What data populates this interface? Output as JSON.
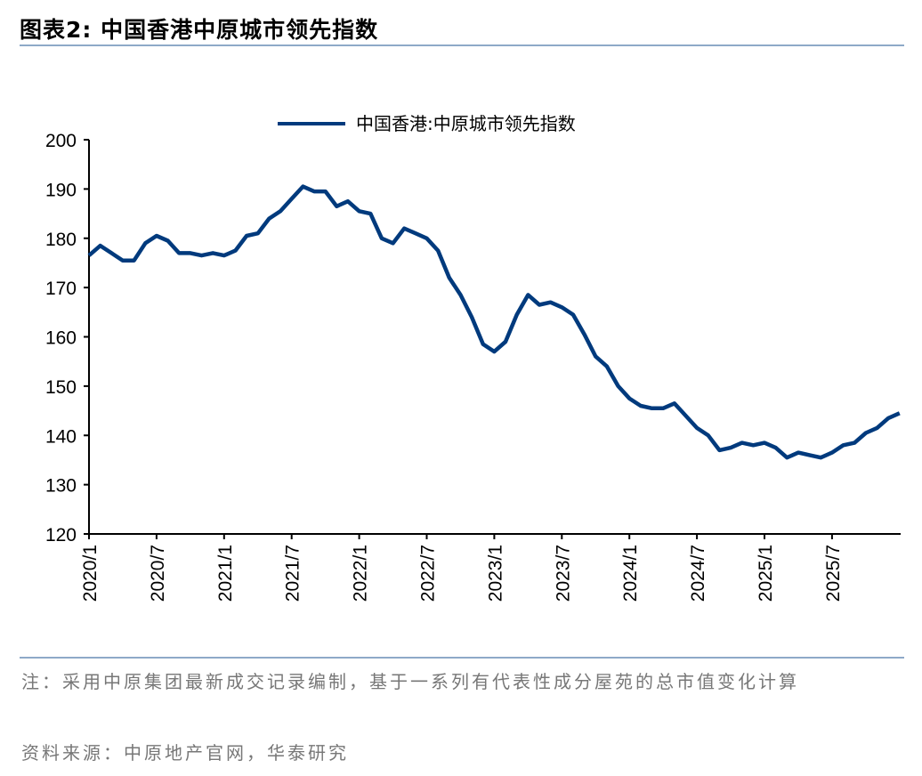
{
  "header": {
    "title": "图表2:   中国香港中原城市领先指数"
  },
  "footer": {
    "note": "注：采用中原集团最新成交记录编制，基于一系列有代表性成分屋苑的总市值变化计算",
    "source": "资料来源：中原地产官网，华泰研究"
  },
  "colors": {
    "series": "#003a7d",
    "rule": "#8ea9c8"
  },
  "chart_data": {
    "type": "line",
    "title": "",
    "xlabel": "",
    "ylabel": "",
    "ylim": [
      120,
      200
    ],
    "yticks": [
      120,
      130,
      140,
      150,
      160,
      170,
      180,
      190,
      200
    ],
    "xticks": [
      "2020/1",
      "2020/7",
      "2021/1",
      "2021/7",
      "2022/1",
      "2022/7",
      "2023/1",
      "2023/7",
      "2024/1",
      "2024/7",
      "2025/1",
      "2025/7"
    ],
    "legend": "top-center",
    "grid": false,
    "series": [
      {
        "name": "中国香港:中原城市领先指数",
        "x": [
          "2020-01",
          "2020-02",
          "2020-03",
          "2020-04",
          "2020-05",
          "2020-06",
          "2020-07",
          "2020-08",
          "2020-09",
          "2020-10",
          "2020-11",
          "2020-12",
          "2021-01",
          "2021-02",
          "2021-03",
          "2021-04",
          "2021-05",
          "2021-06",
          "2021-07",
          "2021-08",
          "2021-09",
          "2021-10",
          "2021-11",
          "2021-12",
          "2022-01",
          "2022-02",
          "2022-03",
          "2022-04",
          "2022-05",
          "2022-06",
          "2022-07",
          "2022-08",
          "2022-09",
          "2022-10",
          "2022-11",
          "2022-12",
          "2023-01",
          "2023-02",
          "2023-03",
          "2023-04",
          "2023-05",
          "2023-06",
          "2023-07",
          "2023-08",
          "2023-09",
          "2023-10",
          "2023-11",
          "2023-12",
          "2024-01",
          "2024-02",
          "2024-03",
          "2024-04",
          "2024-05",
          "2024-06",
          "2024-07",
          "2024-08",
          "2024-09",
          "2024-10",
          "2024-11",
          "2024-12",
          "2025-01",
          "2025-02",
          "2025-03",
          "2025-04",
          "2025-05",
          "2025-06",
          "2025-07",
          "2025-08",
          "2025-09",
          "2025-10",
          "2025-11",
          "2025-12",
          "2026-01"
        ],
        "values": [
          176.5,
          178.5,
          177,
          175.5,
          175.5,
          179,
          180.5,
          179.5,
          177,
          177,
          176.5,
          177,
          176.5,
          177.5,
          180.5,
          181,
          184,
          185.5,
          188,
          190.5,
          189.5,
          189.5,
          186.5,
          187.5,
          185.5,
          185,
          180,
          179,
          182,
          181,
          180,
          177.5,
          172,
          168.5,
          164,
          158.5,
          157,
          159,
          164.5,
          168.5,
          166.5,
          167,
          166,
          164.5,
          160.5,
          156,
          154,
          150,
          147.5,
          146,
          145.5,
          145.5,
          146.5,
          144,
          141.5,
          140,
          137,
          137.5,
          138.5,
          138,
          138.5,
          137.5,
          135.5,
          136.5,
          136,
          135.5,
          136.5,
          138,
          138.5,
          140.5,
          141.5,
          143.5,
          144.5
        ]
      }
    ]
  }
}
